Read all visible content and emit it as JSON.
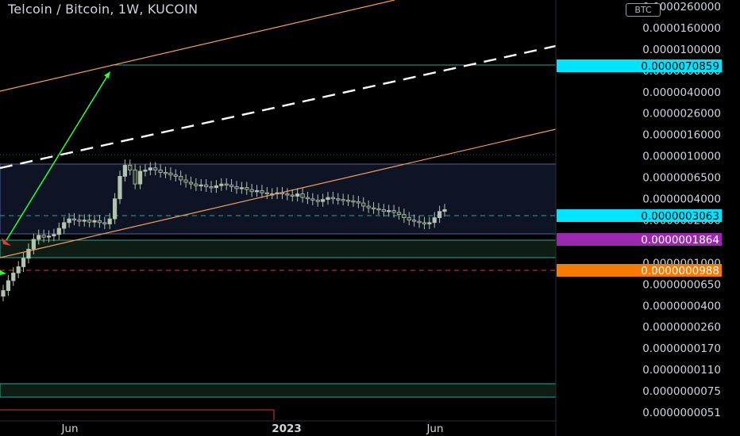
{
  "chart_data": {
    "type": "candlestick",
    "title": "Telcoin / Bitcoin, 1W, KUCOIN",
    "currency_label": "BTC",
    "y_scale": "log",
    "y_ticks": [
      "0.0000260000",
      "0.0000160000",
      "0.0000100000",
      "0.0000060000",
      "0.0000040000",
      "0.0000026000",
      "0.0000016000",
      "0.0000010000",
      "0.0000006500",
      "0.0000004000",
      "0.0000002600",
      "0.0000001600",
      "0.0000001000",
      "0.0000000650",
      "0.0000000400",
      "0.0000000260",
      "0.0000000170",
      "0.0000000110",
      "0.0000000075",
      "0.0000000051"
    ],
    "x_ticks": [
      "Jun",
      "2023",
      "Jun"
    ],
    "price_labels": [
      {
        "value": "0.0000070859",
        "color": "#00e5ff",
        "text_color": "#000000"
      },
      {
        "value": "0.0000003063",
        "color": "#00e5ff",
        "text_color": "#000000"
      },
      {
        "value": "0.0000001864",
        "color": "#9c27b0",
        "text_color": "#ffffff"
      },
      {
        "value": "0.0000000988",
        "color": "#f57c00",
        "text_color": "#ffffff"
      }
    ],
    "closes": [
      1.8e-07,
      2.4e-07,
      3e-07,
      3.6e-07,
      4.6e-07,
      6e-07,
      8e-07,
      9e-07,
      8.5e-07,
      8.8e-07,
      9.2e-07,
      1.1e-06,
      1.3e-06,
      1.45e-06,
      1.4e-06,
      1.35e-06,
      1.4e-06,
      1.32e-06,
      1.38e-06,
      1.3e-06,
      1.25e-06,
      1.45e-06,
      2.6e-06,
      5e-06,
      6.9e-06,
      6e-06,
      4e-06,
      5.8e-06,
      6e-06,
      6.4e-06,
      6e-06,
      5.6e-06,
      5.5e-06,
      5.2e-06,
      5e-06,
      4.5e-06,
      4.2e-06,
      4e-06,
      3.8e-06,
      3.9e-06,
      3.7e-06,
      3.6e-06,
      3.8e-06,
      4e-06,
      3.9e-06,
      3.7e-06,
      3.5e-06,
      3.6e-06,
      3.4e-06,
      3.2e-06,
      3.3e-06,
      3.1e-06,
      3e-06,
      3e-06,
      3.1e-06,
      3e-06,
      2.9e-06,
      2.8e-06,
      3e-06,
      2.7e-06,
      2.6e-06,
      2.5e-06,
      2.4e-06,
      2.55e-06,
      2.7e-06,
      2.6e-06,
      2.55e-06,
      2.5e-06,
      2.45e-06,
      2.4e-06,
      2.3e-06,
      2.1e-06,
      2e-06,
      1.95e-06,
      1.9e-06,
      1.8e-06,
      1.85e-06,
      1.75e-06,
      1.65e-06,
      1.5e-06,
      1.4e-06,
      1.35e-06,
      1.3e-06,
      1.25e-06,
      1.3e-06,
      1.5e-06,
      1.8e-06,
      1.9e-06
    ]
  },
  "colors": {
    "candle": "#b3c3b0",
    "candle_dark": "#2d3a2a",
    "channel": "#f0a05a",
    "midline": "#ffffff",
    "arrow": "#2bff3a",
    "zone_blue": "#0e1424",
    "zone_border": "#5060a0",
    "zone_green": "#0f1c14",
    "zone_green_border": "#26a69a",
    "red_dash": "#e53935",
    "cyan_dash": "#26a69a"
  }
}
